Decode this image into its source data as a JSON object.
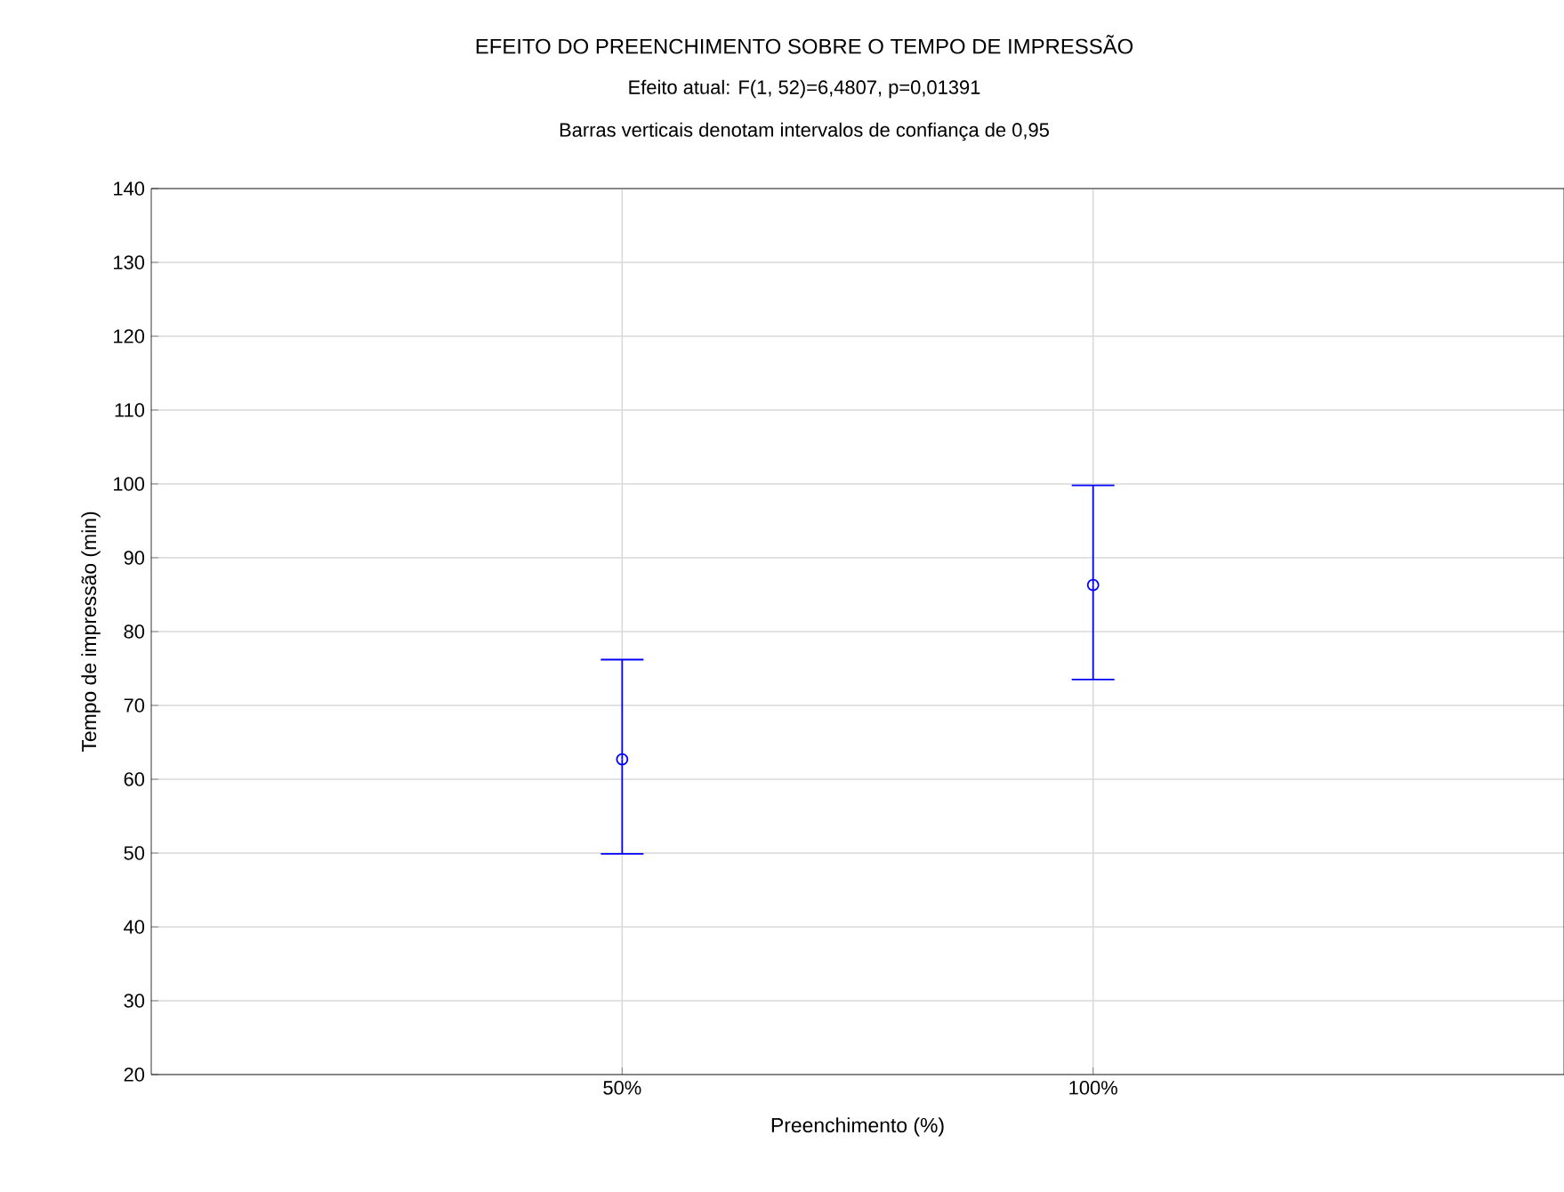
{
  "chart_data": {
    "type": "scatter",
    "title": "EFEITO DO PREENCHIMENTO SOBRE O TEMPO DE IMPRESSÃO",
    "subtitle": "Efeito atual: F(1, 52)=6,4807, p=0,01391",
    "annotations": [
      "Barras verticais denotam intervalos de confiança de 0,95"
    ],
    "xlabel": "Preenchimento (%)",
    "ylabel": "Tempo de impressão (min)",
    "categories": [
      "50%",
      "100%"
    ],
    "series": [
      {
        "color": "#0000ff",
        "values": [
          62.7,
          86.3
        ],
        "errors": [
          [
            49.9,
            76.2
          ],
          [
            73.5,
            99.8
          ]
        ]
      }
    ],
    "ylim": [
      20,
      140
    ],
    "yticks": [
      20,
      30,
      40,
      50,
      60,
      70,
      80,
      90,
      100,
      110,
      120,
      130,
      140
    ],
    "grid": true,
    "marker": "circle"
  }
}
